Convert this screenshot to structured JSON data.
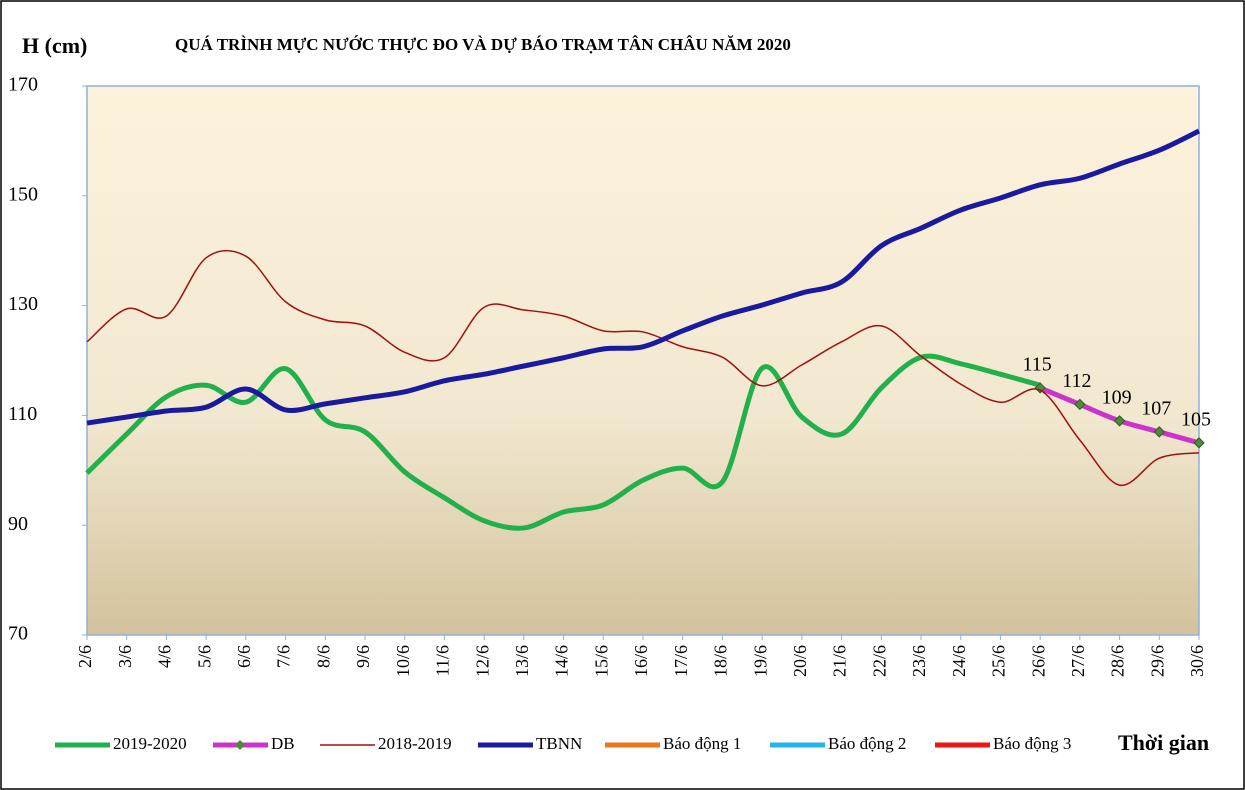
{
  "chart_data": {
    "type": "line",
    "title": "QUÁ TRÌNH MỰC NƯỚC THỰC ĐO VÀ DỰ BÁO TRẠM TÂN CHÂU NĂM 2020",
    "y_label": "H (cm)",
    "x_label": "Thời gian",
    "categories": [
      "2/6",
      "3/6",
      "4/6",
      "5/6",
      "6/6",
      "7/6",
      "8/6",
      "9/6",
      "10/6",
      "11/6",
      "12/6",
      "13/6",
      "14/6",
      "15/6",
      "16/6",
      "17/6",
      "18/6",
      "19/6",
      "20/6",
      "21/6",
      "22/6",
      "23/6",
      "24/6",
      "25/6",
      "26/6",
      "27/6",
      "28/6",
      "29/6",
      "30/6"
    ],
    "ylim": [
      70,
      170
    ],
    "yticks": [
      70,
      90,
      110,
      130,
      150,
      170
    ],
    "series": [
      {
        "name": "2019-2020",
        "color": "#21b04b",
        "values": [
          99.5,
          106.6,
          113.4,
          115.5,
          112.4,
          118.5,
          109.2,
          107,
          99.7,
          95,
          90.8,
          89.5,
          92.4,
          93.7,
          98.2,
          100.4,
          97.9,
          118.6,
          109.7,
          106.6,
          115,
          120.6,
          119.4,
          117.5,
          115.5,
          null,
          null,
          null,
          null
        ]
      },
      {
        "name": "DB",
        "color": "#cc33cc",
        "markers": true,
        "data_labels": true,
        "values": [
          null,
          null,
          null,
          null,
          null,
          null,
          null,
          null,
          null,
          null,
          null,
          null,
          null,
          null,
          null,
          null,
          null,
          null,
          null,
          null,
          null,
          null,
          null,
          null,
          115,
          112,
          109,
          107,
          105
        ]
      },
      {
        "name": "2018-2019",
        "color": "#a01010",
        "values": [
          123.4,
          129.4,
          128.1,
          138.7,
          139,
          130.7,
          127.4,
          126.3,
          121.5,
          120.5,
          129.7,
          129.2,
          128.1,
          125.4,
          125.2,
          122.5,
          120.6,
          115.4,
          119.2,
          123.4,
          126.3,
          120.8,
          115.7,
          112.4,
          114.6,
          105.5,
          97.3,
          102.2,
          103.2
        ]
      },
      {
        "name": "TBNN",
        "color": "#1a1aa0",
        "values": [
          108.6,
          109.7,
          110.8,
          111.5,
          114.8,
          111,
          112.1,
          113.2,
          114.3,
          116.3,
          117.5,
          119,
          120.5,
          122.1,
          122.5,
          125.4,
          128.1,
          130.1,
          132.3,
          134.3,
          140.9,
          144.1,
          147.4,
          149.6,
          152,
          153.2,
          155.8,
          158.3,
          161.8
        ]
      },
      {
        "name": "Báo động 1",
        "color": "#e8781e",
        "values": [
          null,
          null,
          null,
          null,
          null,
          null,
          null,
          null,
          null,
          null,
          null,
          null,
          null,
          null,
          null,
          null,
          null,
          null,
          null,
          null,
          null,
          null,
          null,
          null,
          null,
          null,
          null,
          null,
          null
        ]
      },
      {
        "name": "Báo động 2",
        "color": "#22b4ea",
        "values": [
          null,
          null,
          null,
          null,
          null,
          null,
          null,
          null,
          null,
          null,
          null,
          null,
          null,
          null,
          null,
          null,
          null,
          null,
          null,
          null,
          null,
          null,
          null,
          null,
          null,
          null,
          null,
          null,
          null
        ]
      },
      {
        "name": "Báo động 3",
        "color": "#ee1515",
        "values": [
          null,
          null,
          null,
          null,
          null,
          null,
          null,
          null,
          null,
          null,
          null,
          null,
          null,
          null,
          null,
          null,
          null,
          null,
          null,
          null,
          null,
          null,
          null,
          null,
          null,
          null,
          null,
          null,
          null
        ]
      }
    ]
  }
}
